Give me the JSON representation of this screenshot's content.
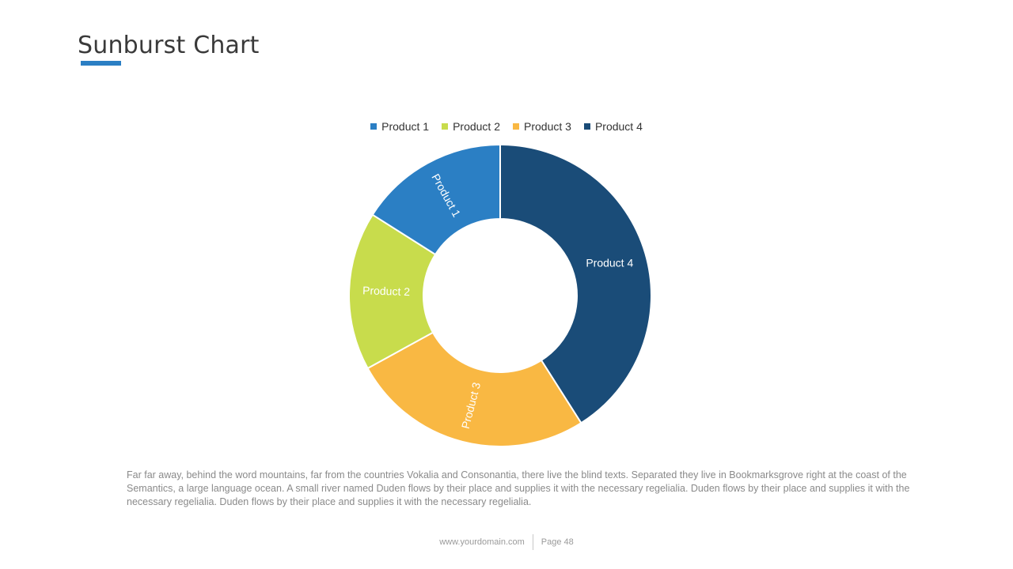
{
  "slide": {
    "title": "Sunburst Chart",
    "body_text": "Far far away, behind the word mountains, far from the countries Vokalia and Consonantia, there live the blind texts. Separated they live in Bookmarksgrove right at the coast of the Semantics, a large language ocean. A small river named Duden flows by their place and supplies it with the necessary regelialia. Duden flows by their place and supplies it with the necessary regelialia. Duden flows by their place and supplies it with the necessary regelialia."
  },
  "footer": {
    "website": "www.yourdomain.com",
    "page": "Page 48"
  },
  "chart_data": {
    "type": "pie",
    "donut": true,
    "legend_position": "top",
    "categories": [
      "Product 1",
      "Product 2",
      "Product 3",
      "Product 4"
    ],
    "values": [
      16,
      17,
      26,
      41
    ],
    "colors": [
      "#2b7fc4",
      "#c8dc4c",
      "#f9b843",
      "#1a4c78"
    ]
  }
}
